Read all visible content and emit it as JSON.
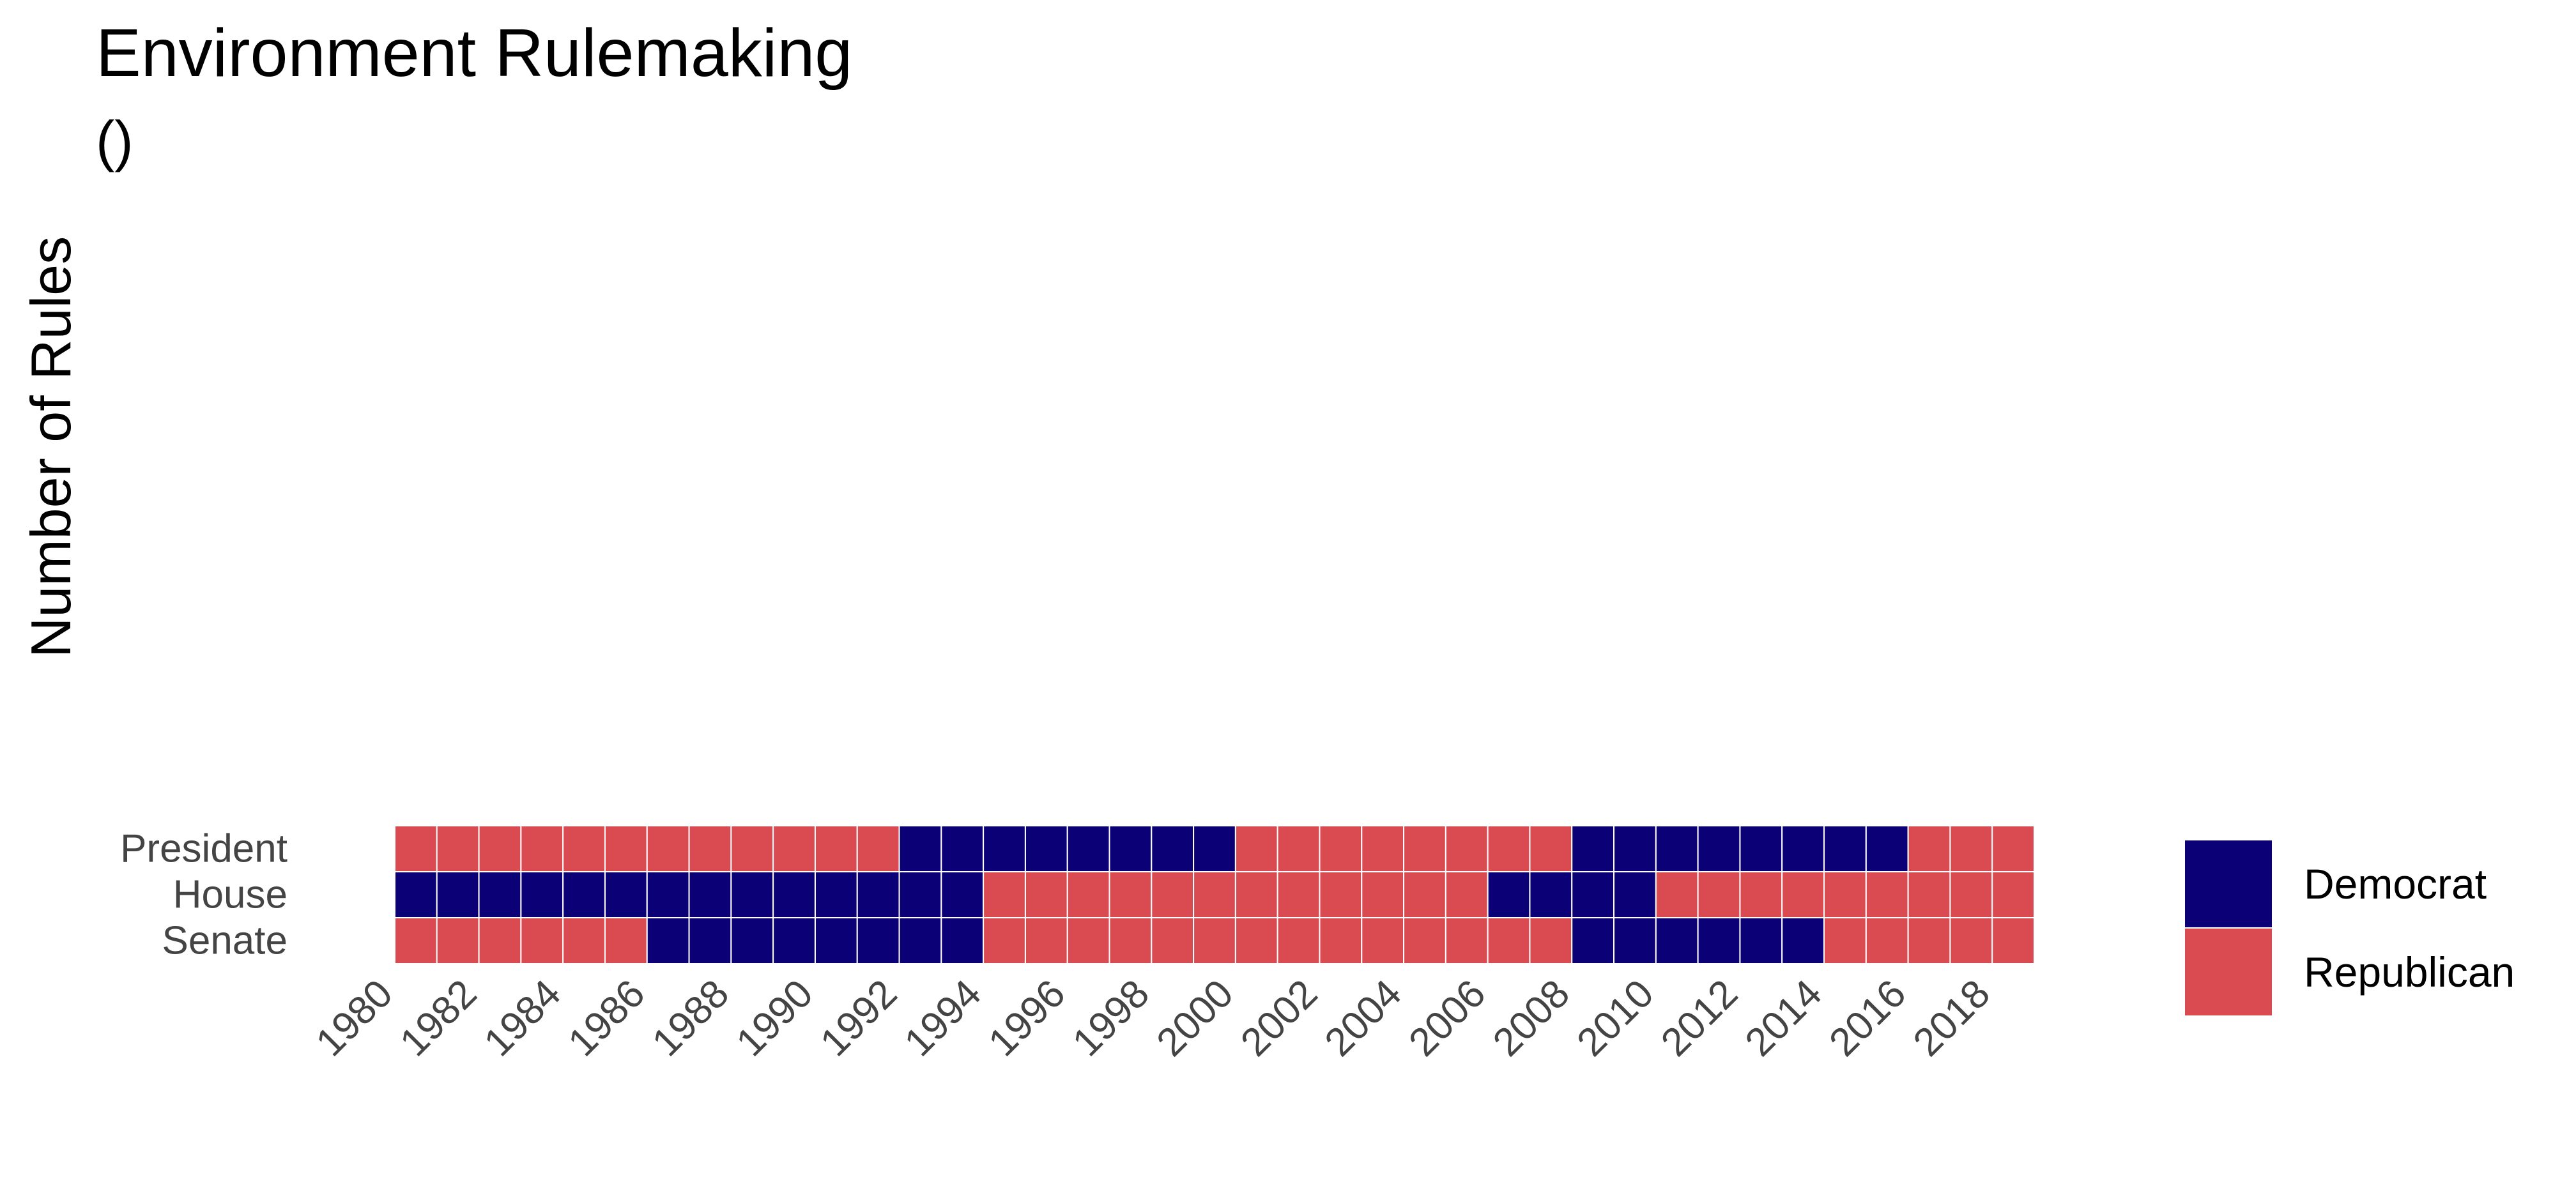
{
  "title": "Environment Rulemaking",
  "subtitle": "()",
  "ylabel": "Number of Rules",
  "colors": {
    "Democrat": "#0b0075",
    "Republican": "#d94b50"
  },
  "chart_data": {
    "type": "heatmap",
    "title": "Environment Rulemaking",
    "subtitle": "()",
    "ylabel": "Number of Rules",
    "x": [
      1980,
      1981,
      1982,
      1983,
      1984,
      1985,
      1986,
      1987,
      1988,
      1989,
      1990,
      1991,
      1992,
      1993,
      1994,
      1995,
      1996,
      1997,
      1998,
      1999,
      2000,
      2001,
      2002,
      2003,
      2004,
      2005,
      2006,
      2007,
      2008,
      2009,
      2010,
      2011,
      2012,
      2013,
      2014,
      2015,
      2016,
      2017,
      2018
    ],
    "x_tick_labels": [
      "1980",
      "1982",
      "1984",
      "1986",
      "1988",
      "1990",
      "1992",
      "1994",
      "1996",
      "1998",
      "2000",
      "2002",
      "2004",
      "2006",
      "2008",
      "2010",
      "2012",
      "2014",
      "2016",
      "2018"
    ],
    "rows": [
      "President",
      "House",
      "Senate"
    ],
    "series": [
      {
        "name": "President",
        "values": [
          "R",
          "R",
          "R",
          "R",
          "R",
          "R",
          "R",
          "R",
          "R",
          "R",
          "R",
          "R",
          "D",
          "D",
          "D",
          "D",
          "D",
          "D",
          "D",
          "D",
          "R",
          "R",
          "R",
          "R",
          "R",
          "R",
          "R",
          "R",
          "D",
          "D",
          "D",
          "D",
          "D",
          "D",
          "D",
          "D",
          "R",
          "R",
          "R"
        ]
      },
      {
        "name": "House",
        "values": [
          "D",
          "D",
          "D",
          "D",
          "D",
          "D",
          "D",
          "D",
          "D",
          "D",
          "D",
          "D",
          "D",
          "D",
          "R",
          "R",
          "R",
          "R",
          "R",
          "R",
          "R",
          "R",
          "R",
          "R",
          "R",
          "R",
          "D",
          "D",
          "D",
          "D",
          "R",
          "R",
          "R",
          "R",
          "R",
          "R",
          "R",
          "R",
          "R"
        ]
      },
      {
        "name": "Senate",
        "values": [
          "R",
          "R",
          "R",
          "R",
          "R",
          "R",
          "D",
          "D",
          "D",
          "D",
          "D",
          "D",
          "D",
          "D",
          "R",
          "R",
          "R",
          "R",
          "R",
          "R",
          "R",
          "R",
          "R",
          "R",
          "R",
          "R",
          "R",
          "R",
          "D",
          "D",
          "D",
          "D",
          "D",
          "D",
          "R",
          "R",
          "R",
          "R",
          "R"
        ]
      }
    ],
    "legend": {
      "position": "right",
      "entries": [
        "Democrat",
        "Republican"
      ]
    }
  }
}
